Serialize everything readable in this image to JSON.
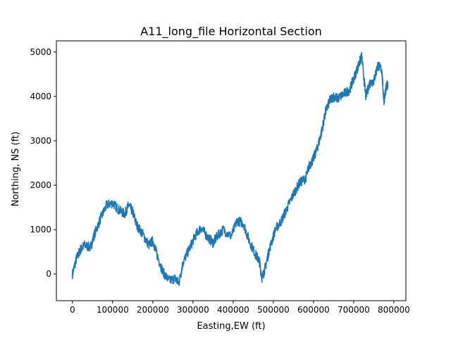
{
  "chart_data": {
    "type": "line",
    "title": "A11_long_file Horizontal Section",
    "xlabel": "Easting,EW (ft)",
    "ylabel": "Northing, NS (ft)",
    "xlim": [
      -40000,
      830000
    ],
    "ylim": [
      -600,
      5250
    ],
    "xticks": [
      0,
      100000,
      200000,
      300000,
      400000,
      500000,
      600000,
      700000,
      800000
    ],
    "xtick_labels": [
      "0",
      "100000",
      "200000",
      "300000",
      "400000",
      "500000",
      "600000",
      "700000",
      "800000"
    ],
    "yticks": [
      0,
      1000,
      2000,
      3000,
      4000,
      5000
    ],
    "ytick_labels": [
      "0",
      "1000",
      "2000",
      "3000",
      "4000",
      "5000"
    ],
    "grid": false,
    "legend": "none",
    "series": [
      {
        "color": "#1f77b4",
        "points": [
          [
            0,
            0
          ],
          [
            10000,
            350
          ],
          [
            20000,
            550
          ],
          [
            30000,
            650
          ],
          [
            45000,
            600
          ],
          [
            55000,
            900
          ],
          [
            70000,
            1250
          ],
          [
            85000,
            1550
          ],
          [
            100000,
            1600
          ],
          [
            115000,
            1450
          ],
          [
            130000,
            1350
          ],
          [
            140000,
            1550
          ],
          [
            150000,
            1400
          ],
          [
            160000,
            1100
          ],
          [
            175000,
            900
          ],
          [
            190000,
            650
          ],
          [
            200000,
            750
          ],
          [
            210000,
            450
          ],
          [
            225000,
            50
          ],
          [
            240000,
            -150
          ],
          [
            255000,
            -100
          ],
          [
            265000,
            -200
          ],
          [
            275000,
            250
          ],
          [
            290000,
            550
          ],
          [
            305000,
            850
          ],
          [
            320000,
            1050
          ],
          [
            335000,
            850
          ],
          [
            350000,
            700
          ],
          [
            360000,
            850
          ],
          [
            375000,
            1000
          ],
          [
            395000,
            850
          ],
          [
            410000,
            1200
          ],
          [
            425000,
            1150
          ],
          [
            440000,
            750
          ],
          [
            455000,
            450
          ],
          [
            465000,
            300
          ],
          [
            472000,
            -100
          ],
          [
            480000,
            150
          ],
          [
            490000,
            550
          ],
          [
            505000,
            1000
          ],
          [
            520000,
            1200
          ],
          [
            535000,
            1500
          ],
          [
            550000,
            1800
          ],
          [
            565000,
            2050
          ],
          [
            580000,
            2150
          ],
          [
            590000,
            2450
          ],
          [
            600000,
            2600
          ],
          [
            610000,
            2850
          ],
          [
            620000,
            3200
          ],
          [
            630000,
            3650
          ],
          [
            640000,
            3900
          ],
          [
            650000,
            4000
          ],
          [
            660000,
            3950
          ],
          [
            675000,
            4050
          ],
          [
            690000,
            4150
          ],
          [
            700000,
            4400
          ],
          [
            712000,
            4700
          ],
          [
            720000,
            4900
          ],
          [
            730000,
            4000
          ],
          [
            740000,
            4300
          ],
          [
            750000,
            4350
          ],
          [
            760000,
            4700
          ],
          [
            770000,
            4600
          ],
          [
            775000,
            3900
          ],
          [
            780000,
            4150
          ],
          [
            785000,
            4300
          ]
        ]
      }
    ]
  }
}
